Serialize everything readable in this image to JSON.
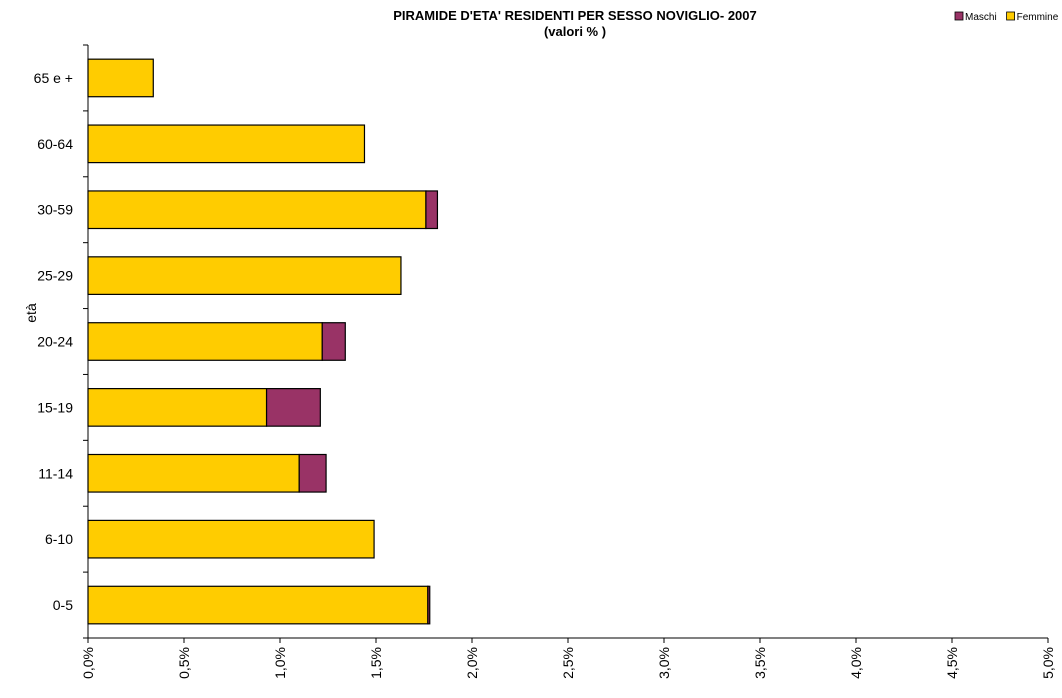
{
  "chart_data": {
    "type": "bar",
    "orientation": "horizontal",
    "stacked": true,
    "title": "PIRAMIDE D'ETA' RESIDENTI PER SESSO NOVIGLIO- 2007",
    "subtitle": "(valori % )",
    "ylabel": "età",
    "xlabel": "",
    "categories": [
      "65 e +",
      "60-64",
      "30-59",
      "25-29",
      "20-24",
      "15-19",
      "11-14",
      "6-10",
      "0-5"
    ],
    "series": [
      {
        "name": "Femmine",
        "color": "#FFCC00",
        "values": [
          0.34,
          1.44,
          1.76,
          1.63,
          1.22,
          0.93,
          1.1,
          1.49,
          1.77
        ]
      },
      {
        "name": "Maschi",
        "color": "#993366",
        "values": [
          0.0,
          0.0,
          0.06,
          0.0,
          0.12,
          0.28,
          0.14,
          0.0,
          0.01
        ]
      }
    ],
    "legend": {
      "items": [
        "Maschi",
        "Femmine"
      ],
      "position": "top-right"
    },
    "xlim": [
      0,
      5.0
    ],
    "xticks": [
      0,
      0.5,
      1.0,
      1.5,
      2.0,
      2.5,
      3.0,
      3.5,
      4.0,
      4.5,
      5.0
    ],
    "xtick_labels": [
      "0,0%",
      "0,5%",
      "1,0%",
      "1,5%",
      "2,0%",
      "2,5%",
      "3,0%",
      "3,5%",
      "4,0%",
      "4,5%",
      "5,0%"
    ],
    "grid": false
  }
}
